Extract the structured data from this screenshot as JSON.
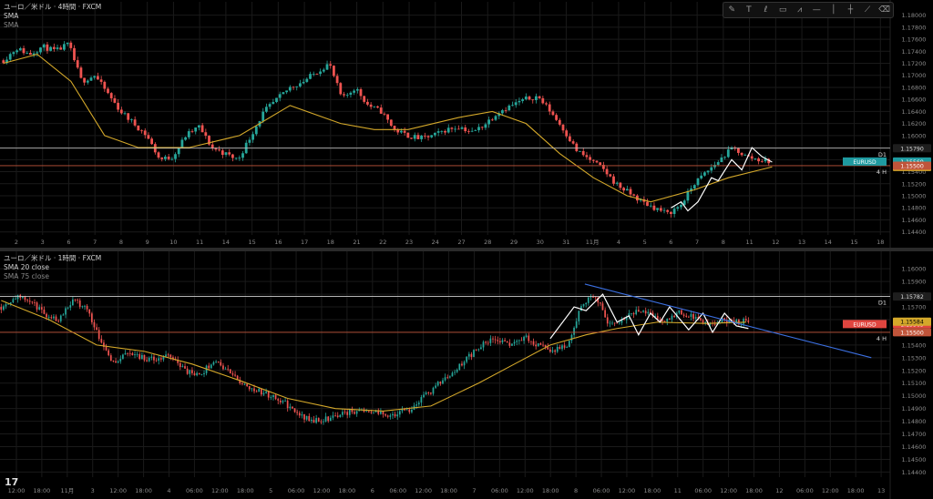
{
  "colors": {
    "up": "#26a69a",
    "down": "#ef5350",
    "sma": "#d4a82a",
    "d1": "#cfcfcf",
    "h4": "#c0543a",
    "trend": "#3b6fe0",
    "zigzag": "#ffffff",
    "grid": "#1a1a1a",
    "axis": "#8a8a8a"
  },
  "toolbar": {
    "icons": [
      "pencil-icon",
      "text-icon",
      "brush-icon",
      "rectangle-icon",
      "zigzag-tool-icon",
      "horizontal-line-icon",
      "vertical-line-icon",
      "cross-line-icon",
      "ray-icon",
      "eraser-icon"
    ],
    "glyphs": [
      "✎",
      "T",
      "ℓ",
      "▭",
      "⩘",
      "—",
      "│",
      "┼",
      "⟋",
      "⌫"
    ]
  },
  "panes": [
    {
      "legend": {
        "title": "ユーロ／米ドル · 4時間 · FXCM",
        "ind1": "SMA",
        "ind2": "SMA"
      },
      "y_ticks": [
        "1.18000",
        "1.17800",
        "1.17600",
        "1.17400",
        "1.17200",
        "1.17000",
        "1.16800",
        "1.16600",
        "1.16400",
        "1.16200",
        "1.16000",
        "1.15800",
        "1.15600",
        "1.15400",
        "1.15200",
        "1.15000",
        "1.14800",
        "1.14600",
        "1.14400"
      ],
      "x_ticks": [
        "2",
        "3",
        "6",
        "7",
        "8",
        "9",
        "10",
        "11",
        "14",
        "15",
        "16",
        "17",
        "18",
        "21",
        "22",
        "23",
        "24",
        "27",
        "28",
        "29",
        "30",
        "31",
        "11月",
        "4",
        "5",
        "6",
        "7",
        "8",
        "11",
        "12",
        "13",
        "14",
        "15",
        "18"
      ],
      "labels": {
        "d1": "D1",
        "d1_price": "1.15790",
        "h4": "4 H",
        "h4_price": "1.15500",
        "sma_price": "1.15479",
        "cur_price": "1.15569",
        "symbol": "EURUSD"
      }
    },
    {
      "legend": {
        "title": "ユーロ／米ドル · 1時間 · FXCM",
        "ind1": "SMA 20 close",
        "ind2": "SMA 75 close"
      },
      "y_ticks": [
        "1.16000",
        "1.15900",
        "1.15800",
        "1.15700",
        "1.15600",
        "1.15500",
        "1.15400",
        "1.15300",
        "1.15200",
        "1.15100",
        "1.15000",
        "1.14900",
        "1.14800",
        "1.14700",
        "1.14600",
        "1.14500",
        "1.14400"
      ],
      "x_ticks": [
        "12:00",
        "18:00",
        "11月",
        "3",
        "12:00",
        "18:00",
        "4",
        "06:00",
        "12:00",
        "18:00",
        "5",
        "06:00",
        "12:00",
        "18:00",
        "6",
        "06:00",
        "12:00",
        "18:00",
        "7",
        "06:00",
        "12:00",
        "18:00",
        "8",
        "06:00",
        "12:00",
        "18:00",
        "11",
        "06:00",
        "12:00",
        "18:00",
        "12",
        "06:00",
        "12:00",
        "18:00",
        "13"
      ],
      "labels": {
        "d1": "D1",
        "d1_price": "1.15782",
        "h4": "4 H",
        "h4_price": "1.15500",
        "sma_price": "1.15584",
        "cur_price": "1.15565",
        "symbol": "EURUSD"
      }
    }
  ],
  "chart_data": [
    {
      "type": "candlestick",
      "title": "ユーロ／米ドル · 4時間 · FXCM",
      "ylim": [
        1.1435,
        1.181
      ],
      "levels": {
        "D1": 1.1579,
        "4H": 1.155
      },
      "anchors": [
        1.1725,
        1.1745,
        1.1735,
        1.1748,
        1.174,
        1.1752,
        1.169,
        1.17,
        1.167,
        1.164,
        1.162,
        1.16,
        1.156,
        1.1565,
        1.16,
        1.1615,
        1.158,
        1.157,
        1.156,
        1.16,
        1.164,
        1.166,
        1.168,
        1.169,
        1.1705,
        1.172,
        1.166,
        1.168,
        1.165,
        1.164,
        1.161,
        1.16,
        1.1595,
        1.16,
        1.161,
        1.1615,
        1.1605,
        1.162,
        1.164,
        1.165,
        1.166,
        1.1665,
        1.164,
        1.161,
        1.1575,
        1.156,
        1.1545,
        1.152,
        1.1505,
        1.149,
        1.148,
        1.147,
        1.1485,
        1.152,
        1.154,
        1.156,
        1.158,
        1.1565,
        1.156,
        1.1556
      ],
      "sma": [
        [
          0,
          1.172
        ],
        [
          10,
          1.1735
        ],
        [
          20,
          1.169
        ],
        [
          30,
          1.16
        ],
        [
          40,
          1.158
        ],
        [
          55,
          1.158
        ],
        [
          70,
          1.16
        ],
        [
          85,
          1.165
        ],
        [
          100,
          1.162
        ],
        [
          110,
          1.161
        ],
        [
          120,
          1.161
        ],
        [
          135,
          1.163
        ],
        [
          145,
          1.164
        ],
        [
          155,
          1.162
        ],
        [
          165,
          1.157
        ],
        [
          175,
          1.153
        ],
        [
          185,
          1.15
        ],
        [
          192,
          1.149
        ],
        [
          205,
          1.151
        ],
        [
          215,
          1.153
        ],
        [
          228,
          1.1548
        ]
      ],
      "zigzag": [
        [
          198,
          1.148
        ],
        [
          201,
          1.149
        ],
        [
          203,
          1.1475
        ],
        [
          206,
          1.149
        ],
        [
          210,
          1.153
        ],
        [
          212,
          1.1525
        ],
        [
          216,
          1.156
        ],
        [
          219,
          1.1543
        ],
        [
          222,
          1.158
        ],
        [
          225,
          1.1565
        ],
        [
          228,
          1.1556
        ]
      ]
    },
    {
      "type": "candlestick",
      "title": "ユーロ／米ドル · 1時間 · FXCM",
      "ylim": [
        1.1436,
        1.1608
      ],
      "levels": {
        "D1": 1.15782,
        "4H": 1.155
      },
      "anchors": [
        1.157,
        1.1578,
        1.1575,
        1.1565,
        1.156,
        1.1575,
        1.157,
        1.1545,
        1.1525,
        1.1535,
        1.153,
        1.1528,
        1.1532,
        1.152,
        1.1515,
        1.1528,
        1.152,
        1.151,
        1.1505,
        1.15,
        1.1495,
        1.1485,
        1.148,
        1.1482,
        1.1486,
        1.1488,
        1.1489,
        1.1485,
        1.1486,
        1.149,
        1.15,
        1.151,
        1.152,
        1.153,
        1.154,
        1.1545,
        1.154,
        1.1546,
        1.154,
        1.1535,
        1.154,
        1.157,
        1.158,
        1.1555,
        1.156,
        1.1568,
        1.1565,
        1.1558,
        1.1566,
        1.1562,
        1.1555,
        1.156,
        1.1558,
        1.156
      ],
      "sma": [
        [
          0,
          1.1575
        ],
        [
          20,
          1.156
        ],
        [
          40,
          1.154
        ],
        [
          60,
          1.1535
        ],
        [
          80,
          1.1525
        ],
        [
          100,
          1.1512
        ],
        [
          120,
          1.1498
        ],
        [
          140,
          1.149
        ],
        [
          160,
          1.1488
        ],
        [
          180,
          1.1492
        ],
        [
          200,
          1.151
        ],
        [
          215,
          1.1525
        ],
        [
          230,
          1.154
        ],
        [
          245,
          1.1548
        ],
        [
          258,
          1.1553
        ],
        [
          275,
          1.1558
        ],
        [
          295,
          1.1557
        ],
        [
          312,
          1.1558
        ]
      ],
      "zigzag": [
        [
          230,
          1.1545
        ],
        [
          240,
          1.157
        ],
        [
          245,
          1.1567
        ],
        [
          252,
          1.158
        ],
        [
          258,
          1.1558
        ],
        [
          263,
          1.1563
        ],
        [
          267,
          1.1548
        ],
        [
          272,
          1.1565
        ],
        [
          276,
          1.1558
        ],
        [
          280,
          1.157
        ],
        [
          288,
          1.1552
        ],
        [
          294,
          1.1565
        ],
        [
          298,
          1.155
        ],
        [
          303,
          1.1565
        ],
        [
          308,
          1.1555
        ],
        [
          313,
          1.1553
        ]
      ],
      "trendline": [
        [
          245,
          1.1588
        ],
        [
          365,
          1.153
        ]
      ]
    }
  ]
}
